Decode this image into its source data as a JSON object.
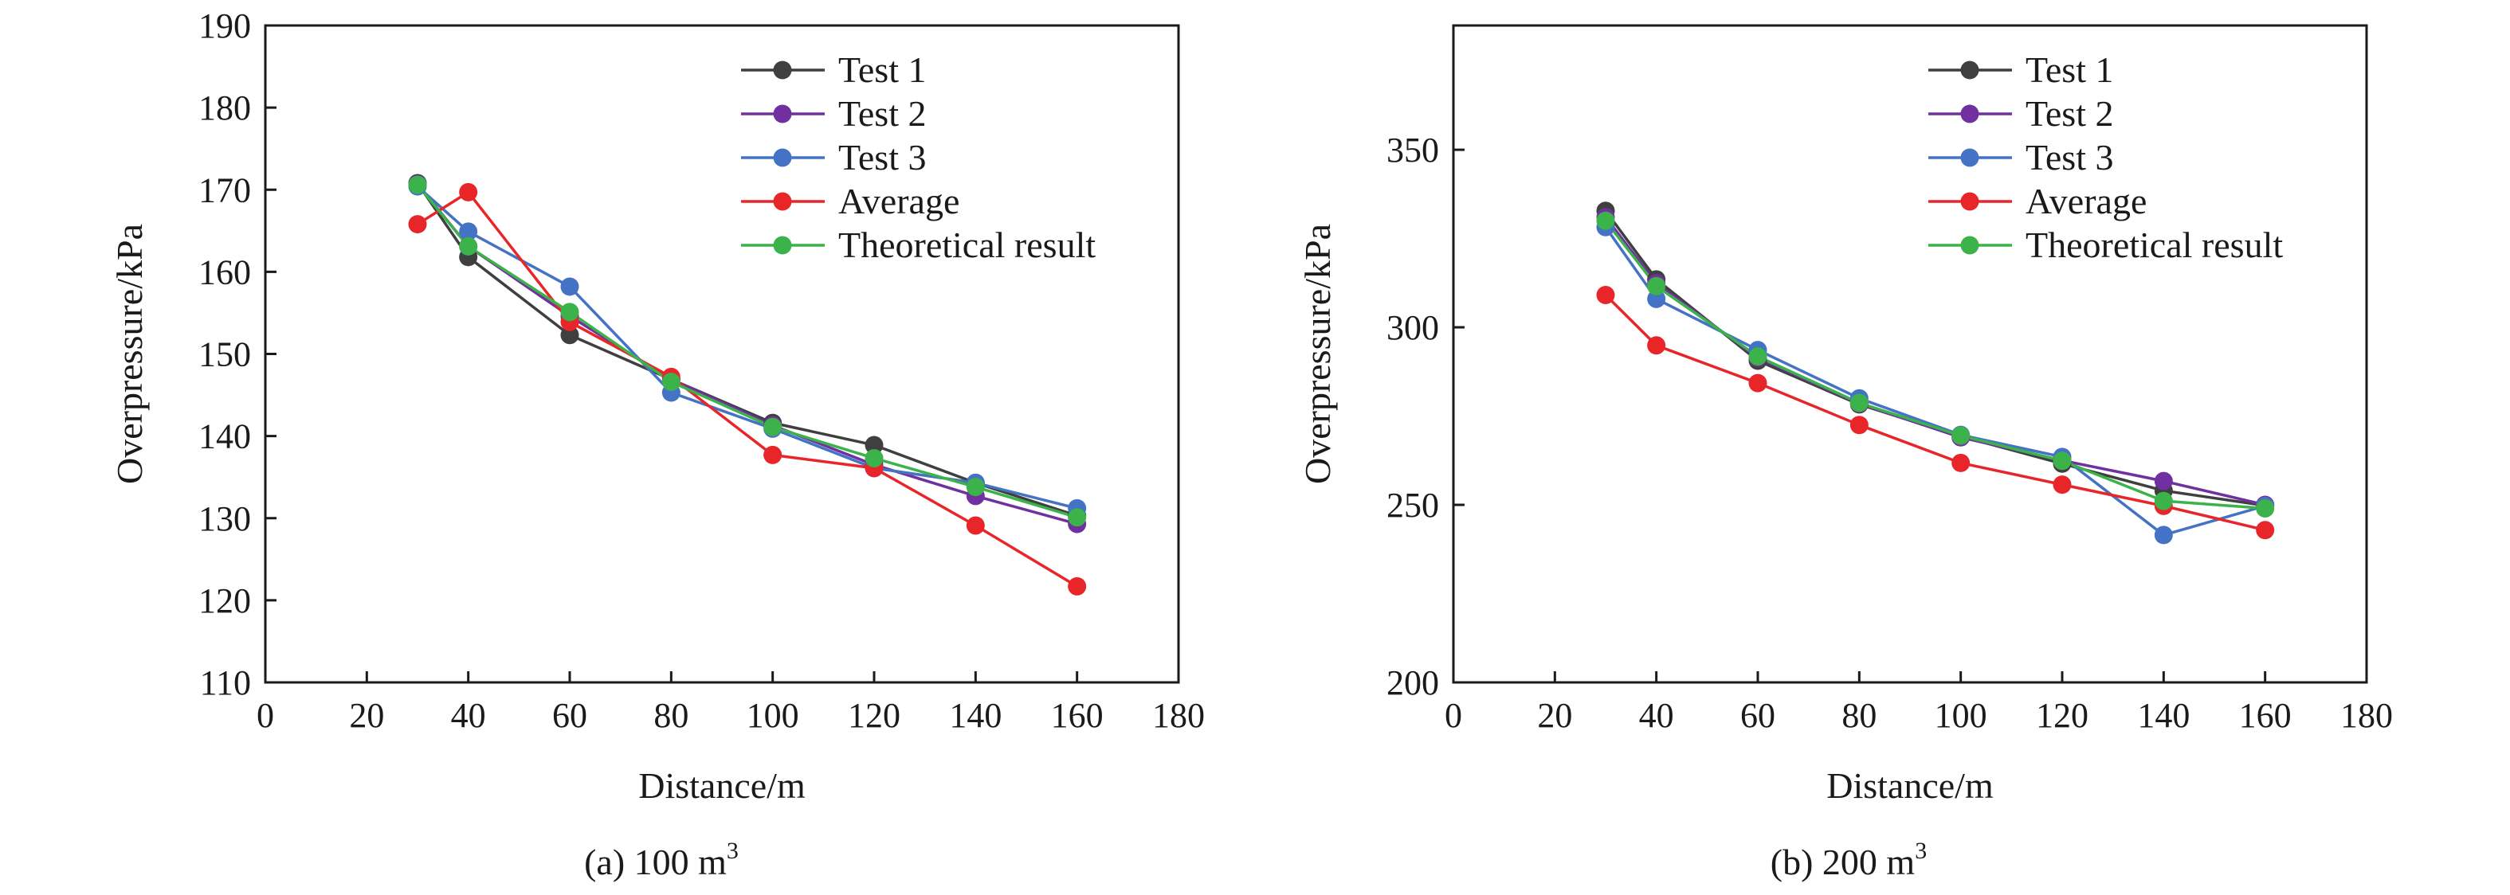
{
  "chart_data": [
    {
      "type": "line",
      "caption": "(a) 100 m",
      "caption_sup": "3",
      "xlabel": "Distance/m",
      "ylabel": "Overpressure/kPa",
      "xlim": [
        0,
        180
      ],
      "ylim": [
        110,
        190
      ],
      "xticks": [
        0,
        20,
        40,
        60,
        80,
        100,
        120,
        140,
        160,
        180
      ],
      "yticks": [
        110,
        120,
        130,
        140,
        150,
        160,
        170,
        180,
        190
      ],
      "grid": false,
      "legend_position": "top-right",
      "series": [
        {
          "name": "Test 1",
          "color": "#3f3f3f",
          "x": [
            30,
            40,
            60,
            80,
            100,
            120,
            140,
            160
          ],
          "y": [
            170.8,
            161.8,
            152.3,
            146.9,
            141.6,
            138.9,
            134.3,
            130.3
          ]
        },
        {
          "name": "Test 2",
          "color": "#7030a0",
          "x": [
            30,
            40,
            60,
            80,
            100,
            120,
            140,
            160
          ],
          "y": [
            170.7,
            163.1,
            154.6,
            146.9,
            141.3,
            136.5,
            132.7,
            129.3
          ]
        },
        {
          "name": "Test 3",
          "color": "#4472c4",
          "x": [
            30,
            40,
            60,
            80,
            100,
            120,
            140,
            160
          ],
          "y": [
            170.4,
            164.9,
            158.2,
            145.3,
            140.9,
            136.1,
            134.3,
            131.2
          ]
        },
        {
          "name": "Average",
          "color": "#e8262a",
          "x": [
            30,
            40,
            60,
            80,
            100,
            120,
            140,
            160
          ],
          "y": [
            165.8,
            169.7,
            153.9,
            147.2,
            137.7,
            136.1,
            129.1,
            121.7
          ]
        },
        {
          "name": "Theoretical result",
          "color": "#3cb24a",
          "x": [
            30,
            40,
            60,
            80,
            100,
            120,
            140,
            160
          ],
          "y": [
            170.6,
            163.1,
            155.1,
            146.6,
            141.1,
            137.3,
            133.8,
            130.1
          ]
        }
      ]
    },
    {
      "type": "line",
      "caption": "(b) 200 m",
      "caption_sup": "3",
      "xlabel": "Distance/m",
      "ylabel": "Overpressure/kPa",
      "xlim": [
        0,
        180
      ],
      "ylim": [
        200,
        385
      ],
      "xticks": [
        0,
        20,
        40,
        60,
        80,
        100,
        120,
        140,
        160,
        180
      ],
      "yticks": [
        200,
        250,
        300,
        350
      ],
      "grid": false,
      "legend_position": "top-right",
      "series": [
        {
          "name": "Test 1",
          "color": "#3f3f3f",
          "x": [
            30,
            40,
            60,
            80,
            100,
            120,
            140,
            160
          ],
          "y": [
            332.8,
            313.5,
            290.6,
            278.3,
            269.3,
            261.6,
            254.0,
            249.8
          ]
        },
        {
          "name": "Test 2",
          "color": "#7030a0",
          "x": [
            30,
            40,
            60,
            80,
            100,
            120,
            140,
            160
          ],
          "y": [
            331.0,
            312.4,
            291.4,
            278.5,
            269.0,
            262.5,
            256.7,
            250.0
          ]
        },
        {
          "name": "Test 3",
          "color": "#4472c4",
          "x": [
            30,
            40,
            60,
            80,
            100,
            120,
            140,
            160
          ],
          "y": [
            328.2,
            308.0,
            293.6,
            280.0,
            269.7,
            263.5,
            241.5,
            249.7
          ]
        },
        {
          "name": "Average",
          "color": "#e8262a",
          "x": [
            30,
            40,
            60,
            80,
            100,
            120,
            140,
            160
          ],
          "y": [
            309.1,
            294.9,
            284.3,
            272.5,
            261.8,
            255.7,
            249.7,
            242.9
          ]
        },
        {
          "name": "Theoretical result",
          "color": "#3cb24a",
          "x": [
            30,
            40,
            60,
            80,
            100,
            120,
            140,
            160
          ],
          "y": [
            330.0,
            311.6,
            291.8,
            278.7,
            269.5,
            262.4,
            251.1,
            249.0
          ]
        }
      ]
    }
  ]
}
